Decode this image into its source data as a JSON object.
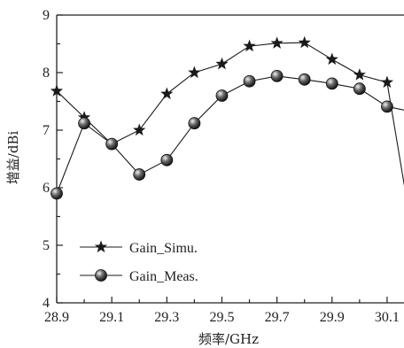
{
  "chart_data": {
    "type": "line",
    "title": "",
    "xlabel": "频率/GHz",
    "ylabel": "增益/dBi",
    "xlim": [
      28.9,
      30.2
    ],
    "ylim": [
      4,
      9
    ],
    "xticks": [
      28.9,
      29.1,
      29.3,
      29.5,
      29.7,
      29.9,
      30.1
    ],
    "xtick_labels": [
      "28.9",
      "29.1",
      "29.3",
      "29.5",
      "29.7",
      "29.9",
      "30.1"
    ],
    "yticks": [
      4,
      5,
      6,
      7,
      8,
      9
    ],
    "ytick_labels": [
      "4",
      "5",
      "6",
      "7",
      "8",
      "9"
    ],
    "grid": false,
    "legend_position": "bottom-left",
    "series": [
      {
        "name": "Gain_Simu.",
        "marker": "star",
        "color": "#1a1a1a",
        "x": [
          28.9,
          29.0,
          29.1,
          29.2,
          29.3,
          29.4,
          29.5,
          29.6,
          29.7,
          29.8,
          29.9,
          30.0,
          30.1,
          30.2
        ],
        "y": [
          7.68,
          7.22,
          6.76,
          7.0,
          7.63,
          8.0,
          8.15,
          8.46,
          8.51,
          8.52,
          8.23,
          7.96,
          7.83,
          4.97
        ]
      },
      {
        "name": "Gain_Meas.",
        "marker": "sphere",
        "color": "#1a1a1a",
        "x": [
          28.9,
          29.0,
          29.1,
          29.2,
          29.3,
          29.4,
          29.5,
          29.6,
          29.7,
          29.8,
          29.9,
          30.0,
          30.1,
          30.2
        ],
        "y": [
          5.9,
          7.12,
          6.76,
          6.23,
          6.48,
          7.12,
          7.6,
          7.85,
          7.94,
          7.88,
          7.81,
          7.72,
          7.41,
          7.31
        ]
      }
    ]
  }
}
